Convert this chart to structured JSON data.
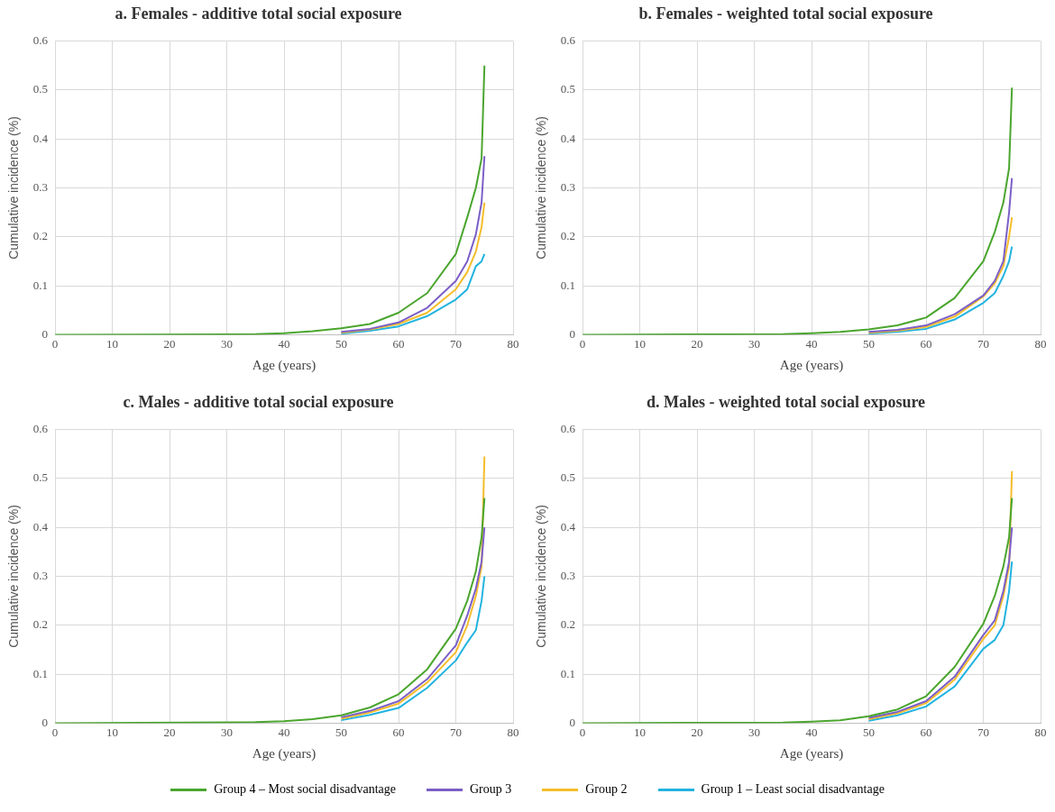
{
  "chart_data": [
    {
      "type": "line",
      "title": "a. Females - additive total social exposure",
      "xlabel": "Age (years)",
      "ylabel": "Cumulative incidence (%)",
      "x": [
        0,
        35,
        40,
        45,
        50,
        55,
        60,
        65,
        70,
        72,
        73.5,
        74.5,
        75
      ],
      "xlim": [
        0,
        80
      ],
      "xticks": [
        0,
        10,
        20,
        30,
        40,
        50,
        60,
        70,
        80
      ],
      "ylim": [
        0,
        0.6
      ],
      "yticks": [
        0,
        0.1,
        0.2,
        0.3,
        0.4,
        0.5,
        0.6
      ],
      "grid": true,
      "legend": "bottom",
      "marker": "none",
      "series": [
        {
          "name": "Group 4 – Most social disadvantage",
          "color": "#4aa52e",
          "values": [
            0,
            0.001,
            0.003,
            0.007,
            0.013,
            0.022,
            0.045,
            0.085,
            0.165,
            0.24,
            0.3,
            0.36,
            0.55
          ]
        },
        {
          "name": "Group 3",
          "color": "#7b5fc7",
          "values": [
            null,
            null,
            null,
            null,
            0.006,
            0.012,
            0.025,
            0.055,
            0.11,
            0.15,
            0.205,
            0.27,
            0.365
          ]
        },
        {
          "name": "Group 2",
          "color": "#f5bd2b",
          "values": [
            null,
            null,
            null,
            null,
            0.004,
            0.011,
            0.022,
            0.045,
            0.093,
            0.128,
            0.17,
            0.22,
            0.27
          ]
        },
        {
          "name": "Group 1 – Least social disadvantage",
          "color": "#22b3e0",
          "values": [
            null,
            null,
            null,
            null,
            0.002,
            0.008,
            0.017,
            0.038,
            0.072,
            0.093,
            0.14,
            0.15,
            0.165
          ]
        }
      ]
    },
    {
      "type": "line",
      "title": "b. Females - weighted total social exposure",
      "xlabel": "Age (years)",
      "ylabel": "Cumulative incidence (%)",
      "x": [
        0,
        35,
        40,
        45,
        50,
        55,
        60,
        65,
        70,
        72,
        73.5,
        74.5,
        75
      ],
      "xlim": [
        0,
        80
      ],
      "xticks": [
        0,
        10,
        20,
        30,
        40,
        50,
        60,
        70,
        80
      ],
      "ylim": [
        0,
        0.6
      ],
      "yticks": [
        0,
        0.1,
        0.2,
        0.3,
        0.4,
        0.5,
        0.6
      ],
      "grid": true,
      "marker": "none",
      "series": [
        {
          "color": "#4aa52e",
          "values": [
            0,
            0.001,
            0.003,
            0.006,
            0.011,
            0.019,
            0.035,
            0.075,
            0.15,
            0.21,
            0.27,
            0.34,
            0.505
          ]
        },
        {
          "color": "#7b5fc7",
          "values": [
            null,
            null,
            null,
            null,
            0.006,
            0.01,
            0.019,
            0.042,
            0.08,
            0.11,
            0.15,
            0.25,
            0.32
          ]
        },
        {
          "color": "#f5bd2b",
          "values": [
            null,
            null,
            null,
            null,
            0.004,
            0.008,
            0.016,
            0.037,
            0.078,
            0.105,
            0.14,
            0.2,
            0.24
          ]
        },
        {
          "color": "#22b3e0",
          "values": [
            null,
            null,
            null,
            null,
            0.002,
            0.006,
            0.012,
            0.031,
            0.065,
            0.085,
            0.12,
            0.15,
            0.18
          ]
        }
      ]
    },
    {
      "type": "line",
      "title": "c. Males - additive total social exposure",
      "xlabel": "Age (years)",
      "ylabel": "Cumulative incidence (%)",
      "x": [
        0,
        35,
        40,
        45,
        50,
        55,
        60,
        65,
        70,
        72,
        73.5,
        74.5,
        75
      ],
      "xlim": [
        0,
        80
      ],
      "xticks": [
        0,
        10,
        20,
        30,
        40,
        50,
        60,
        70,
        80
      ],
      "ylim": [
        0,
        0.6
      ],
      "yticks": [
        0,
        0.1,
        0.2,
        0.3,
        0.4,
        0.5,
        0.6
      ],
      "grid": true,
      "marker": "none",
      "series": [
        {
          "color": "#4aa52e",
          "values": [
            0,
            0.002,
            0.004,
            0.008,
            0.016,
            0.032,
            0.059,
            0.11,
            0.193,
            0.25,
            0.31,
            0.38,
            0.46
          ]
        },
        {
          "color": "#7b5fc7",
          "values": [
            null,
            null,
            null,
            null,
            0.012,
            0.025,
            0.045,
            0.09,
            0.159,
            0.22,
            0.275,
            0.33,
            0.4
          ]
        },
        {
          "color": "#f5bd2b",
          "values": [
            null,
            null,
            null,
            null,
            0.009,
            0.022,
            0.04,
            0.083,
            0.145,
            0.2,
            0.26,
            0.32,
            0.545
          ]
        },
        {
          "color": "#22b3e0",
          "values": [
            null,
            null,
            null,
            null,
            0.006,
            0.017,
            0.031,
            0.072,
            0.128,
            0.165,
            0.19,
            0.25,
            0.3
          ]
        }
      ]
    },
    {
      "type": "line",
      "title": "d. Males - weighted total social exposure",
      "xlabel": "Age (years)",
      "ylabel": "Cumulative incidence (%)",
      "x": [
        0,
        35,
        40,
        45,
        50,
        55,
        60,
        65,
        70,
        72,
        73.5,
        74.5,
        75
      ],
      "xlim": [
        0,
        80
      ],
      "xticks": [
        0,
        10,
        20,
        30,
        40,
        50,
        60,
        70,
        80
      ],
      "ylim": [
        0,
        0.6
      ],
      "yticks": [
        0,
        0.1,
        0.2,
        0.3,
        0.4,
        0.5,
        0.6
      ],
      "grid": true,
      "marker": "none",
      "series": [
        {
          "color": "#4aa52e",
          "values": [
            0,
            0.001,
            0.003,
            0.006,
            0.014,
            0.028,
            0.055,
            0.115,
            0.203,
            0.26,
            0.32,
            0.38,
            0.46
          ]
        },
        {
          "color": "#7b5fc7",
          "values": [
            null,
            null,
            null,
            null,
            0.011,
            0.023,
            0.045,
            0.095,
            0.18,
            0.21,
            0.27,
            0.33,
            0.4
          ]
        },
        {
          "color": "#f5bd2b",
          "values": [
            null,
            null,
            null,
            null,
            0.008,
            0.02,
            0.041,
            0.089,
            0.172,
            0.2,
            0.26,
            0.32,
            0.515
          ]
        },
        {
          "color": "#22b3e0",
          "values": [
            null,
            null,
            null,
            null,
            0.005,
            0.016,
            0.034,
            0.075,
            0.152,
            0.17,
            0.2,
            0.27,
            0.33
          ]
        }
      ]
    }
  ]
}
